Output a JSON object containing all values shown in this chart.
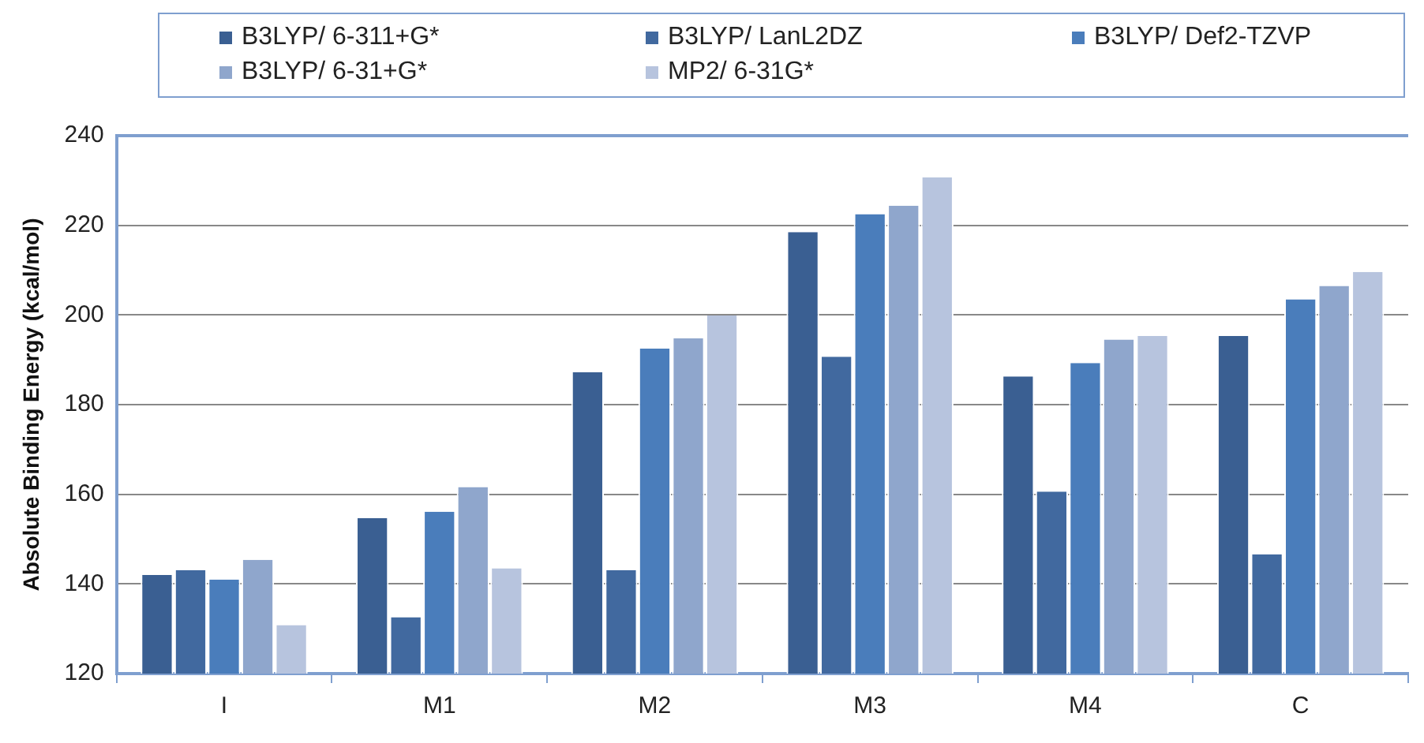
{
  "chart_data": {
    "type": "bar",
    "ylabel": "Absolute Binding Energy (kcal/mol)",
    "categories": [
      "I",
      "M1",
      "M2",
      "M3",
      "M4",
      "C"
    ],
    "series": [
      {
        "name": "B3LYP/ 6-311+G*",
        "color": "#3a5f92",
        "values": [
          142,
          154.7,
          187.2,
          218.5,
          186.3,
          195.3
        ]
      },
      {
        "name": "B3LYP/ LanL2DZ",
        "color": "#41699f",
        "values": [
          143.1,
          132.6,
          143.1,
          190.7,
          160.6,
          146.6
        ]
      },
      {
        "name": "B3LYP/ Def2-TZVP",
        "color": "#4a7dbb",
        "values": [
          141,
          156.1,
          192.5,
          222.5,
          189.3,
          203.5
        ]
      },
      {
        "name": "B3LYP/ 6-31+G*",
        "color": "#8fa6cc",
        "values": [
          145.4,
          161.6,
          194.8,
          224.4,
          194.5,
          206.5
        ]
      },
      {
        "name": "MP2/ 6-31G*",
        "color": "#b7c4de",
        "values": [
          130.8,
          143.5,
          199.9,
          230.7,
          195.3,
          209.6
        ]
      }
    ],
    "ylim": [
      120,
      240
    ],
    "yticks": [
      120,
      140,
      160,
      180,
      200,
      220,
      240
    ],
    "grid": "y",
    "legend": "top"
  }
}
